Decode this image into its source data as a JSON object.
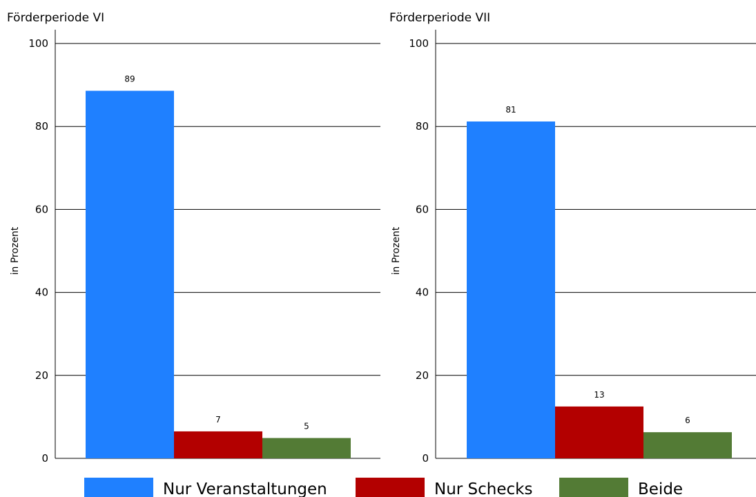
{
  "chart_data": [
    {
      "type": "bar",
      "title": "Förderperiode VI",
      "ylabel": "in Prozent",
      "xlabel": "",
      "ylim": [
        0,
        100
      ],
      "yticks": [
        0,
        20,
        40,
        60,
        80,
        100
      ],
      "grid": "horizontal",
      "categories": [
        "Nur Veranstaltungen",
        "Nur Schecks",
        "Beide"
      ],
      "values": [
        88.6,
        6.5,
        4.9
      ],
      "data_labels": [
        "89",
        "7",
        "5"
      ]
    },
    {
      "type": "bar",
      "title": "Förderperiode VII",
      "ylabel": "in Prozent",
      "xlabel": "",
      "ylim": [
        0,
        100
      ],
      "yticks": [
        0,
        20,
        40,
        60,
        80,
        100
      ],
      "grid": "horizontal",
      "categories": [
        "Nur Veranstaltungen",
        "Nur Schecks",
        "Beide"
      ],
      "values": [
        81.2,
        12.5,
        6.3
      ],
      "data_labels": [
        "81",
        "13",
        "6"
      ]
    }
  ],
  "legend": {
    "placement": "bottom",
    "items": [
      {
        "label": "Nur Veranstaltungen",
        "color": "#1f80ff"
      },
      {
        "label": "Nur Schecks",
        "color": "#b30000"
      },
      {
        "label": "Beide",
        "color": "#537b35"
      }
    ]
  }
}
